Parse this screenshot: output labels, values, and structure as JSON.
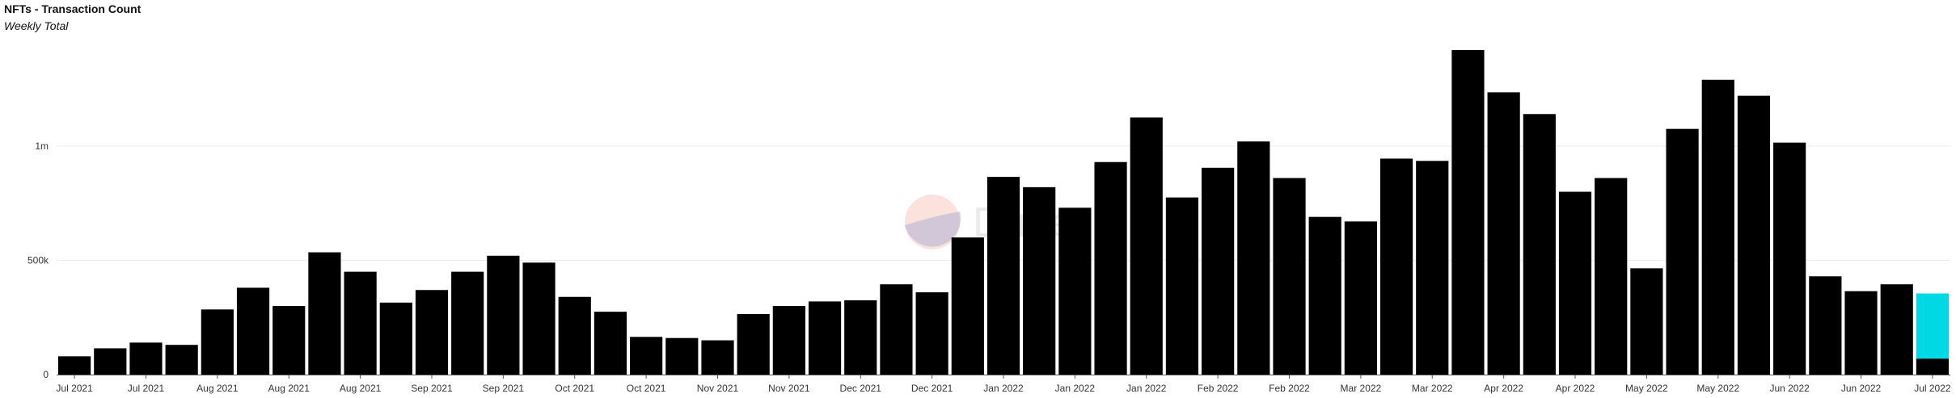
{
  "title": "NFTs - Transaction Count",
  "subtitle": "Weekly Total",
  "watermark": "Dune",
  "colors": {
    "bar": "#000000",
    "highlight": "#00d9e3",
    "grid": "#ececec",
    "axis": "#555555"
  },
  "chart_data": {
    "type": "bar",
    "title": "NFTs - Transaction Count",
    "subtitle": "Weekly Total",
    "xlabel": "",
    "ylabel": "",
    "ylim": [
      0,
      1420000
    ],
    "yticks": [
      {
        "value": 0,
        "label": "0"
      },
      {
        "value": 500000,
        "label": "500k"
      },
      {
        "value": 1000000,
        "label": "1m"
      }
    ],
    "grid": true,
    "legend": "none",
    "categories": [
      "Jul 2021",
      "",
      "Jul 2021",
      "",
      "Aug 2021",
      "",
      "Aug 2021",
      "",
      "Aug 2021",
      "",
      "Sep 2021",
      "",
      "Sep 2021",
      "",
      "Oct 2021",
      "",
      "Oct 2021",
      "",
      "Nov 2021",
      "",
      "Nov 2021",
      "",
      "Dec 2021",
      "",
      "Dec 2021",
      "",
      "Jan 2022",
      "",
      "Jan 2022",
      "",
      "Jan 2022",
      "",
      "Feb 2022",
      "",
      "Feb 2022",
      "",
      "Mar 2022",
      "",
      "Mar 2022",
      "",
      "Apr 2022",
      "",
      "Apr 2022",
      "",
      "May 2022",
      "",
      "May 2022",
      "",
      "Jun 2022",
      "",
      "Jun 2022",
      "",
      "Jul 2022"
    ],
    "series": [
      {
        "values": [
          80000,
          115000,
          140000,
          130000,
          285000,
          380000,
          300000,
          535000,
          450000,
          315000,
          370000,
          450000,
          520000,
          490000,
          340000,
          275000,
          165000,
          160000,
          150000,
          265000,
          300000,
          320000,
          325000,
          395000,
          360000,
          600000,
          865000,
          820000,
          730000,
          930000,
          1125000,
          775000,
          905000,
          1020000,
          860000,
          690000,
          670000,
          945000,
          935000,
          1420000,
          1235000,
          1140000,
          800000,
          860000,
          465000,
          1075000,
          1290000,
          1220000,
          1015000,
          430000,
          365000,
          395000,
          70000
        ]
      },
      {
        "values": [
          0,
          0,
          0,
          0,
          0,
          0,
          0,
          0,
          0,
          0,
          0,
          0,
          0,
          0,
          0,
          0,
          0,
          0,
          0,
          0,
          0,
          0,
          0,
          0,
          0,
          0,
          0,
          0,
          0,
          0,
          0,
          0,
          0,
          0,
          0,
          0,
          0,
          0,
          0,
          0,
          0,
          0,
          0,
          0,
          0,
          0,
          0,
          0,
          0,
          0,
          0,
          0,
          285000
        ]
      }
    ]
  }
}
